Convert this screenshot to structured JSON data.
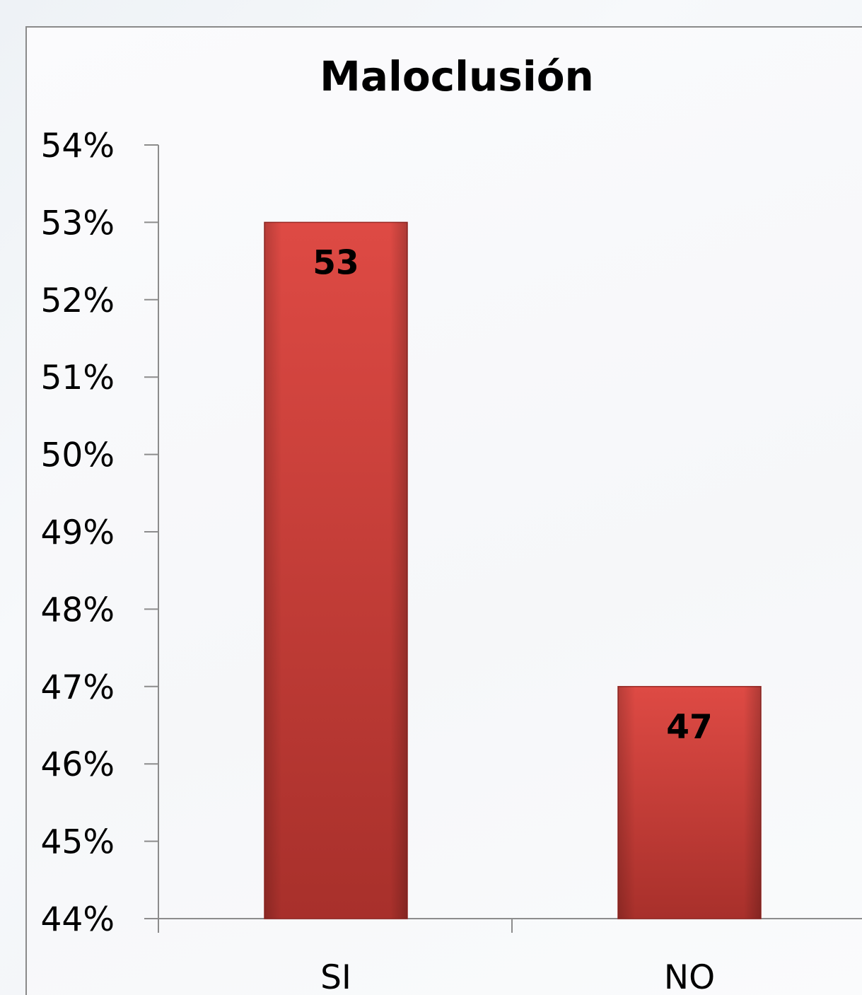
{
  "chart_data": {
    "type": "bar",
    "title": "Maloclusión",
    "categories": [
      "SI",
      "NO"
    ],
    "values": [
      53,
      47
    ],
    "data_labels": [
      "53",
      "47"
    ],
    "ylim": [
      44,
      54
    ],
    "yticks": [
      "44%",
      "45%",
      "46%",
      "47%",
      "48%",
      "49%",
      "50%",
      "51%",
      "52%",
      "53%",
      "54%"
    ],
    "xlabel": "",
    "ylabel": "",
    "grid": false,
    "legend": "none",
    "bar_color": "#c9302c",
    "bar_color_light": "#de4a44",
    "bar_color_dark": "#a8302b"
  }
}
